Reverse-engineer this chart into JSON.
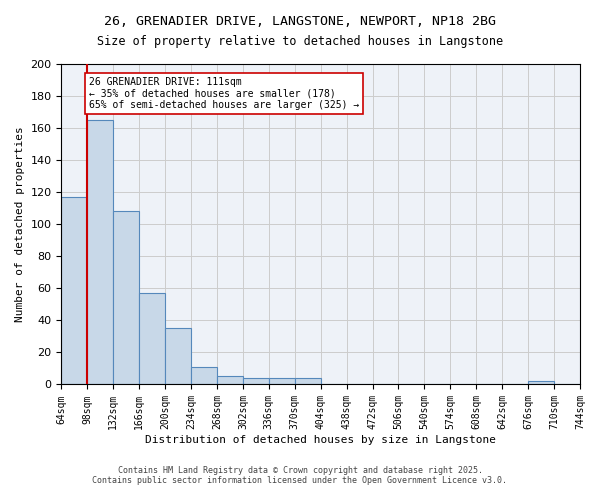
{
  "title_line1": "26, GRENADIER DRIVE, LANGSTONE, NEWPORT, NP18 2BG",
  "title_line2": "Size of property relative to detached houses in Langstone",
  "xlabel": "Distribution of detached houses by size in Langstone",
  "ylabel": "Number of detached properties",
  "bar_values": [
    117,
    165,
    108,
    57,
    35,
    11,
    5,
    4,
    4,
    4,
    0,
    0,
    0,
    0,
    0,
    0,
    0,
    0,
    2,
    0
  ],
  "bin_edges": [
    64,
    98,
    132,
    166,
    200,
    234,
    268,
    302,
    336,
    370,
    404,
    438,
    472,
    506,
    540,
    574,
    608,
    642,
    676,
    710,
    744
  ],
  "tick_labels": [
    "64sqm",
    "98sqm",
    "132sqm",
    "166sqm",
    "200sqm",
    "234sqm",
    "268sqm",
    "302sqm",
    "336sqm",
    "370sqm",
    "404sqm",
    "438sqm",
    "472sqm",
    "506sqm",
    "540sqm",
    "574sqm",
    "608sqm",
    "642sqm",
    "676sqm",
    "710sqm",
    "744sqm"
  ],
  "bar_color": "#c8d8e8",
  "bar_edge_color": "#5588bb",
  "property_size": 111,
  "property_size_bin": 98,
  "vline_x": 98,
  "vline_color": "#cc0000",
  "annotation_text": "26 GRENADIER DRIVE: 111sqm\n← 35% of detached houses are smaller (178)\n65% of semi-detached houses are larger (325) →",
  "annotation_box_color": "#ffffff",
  "annotation_box_edge": "#cc0000",
  "ylim": [
    0,
    200
  ],
  "yticks": [
    0,
    20,
    40,
    60,
    80,
    100,
    120,
    140,
    160,
    180,
    200
  ],
  "grid_color": "#cccccc",
  "bg_color": "#eef2f8",
  "footer_line1": "Contains HM Land Registry data © Crown copyright and database right 2025.",
  "footer_line2": "Contains public sector information licensed under the Open Government Licence v3.0."
}
